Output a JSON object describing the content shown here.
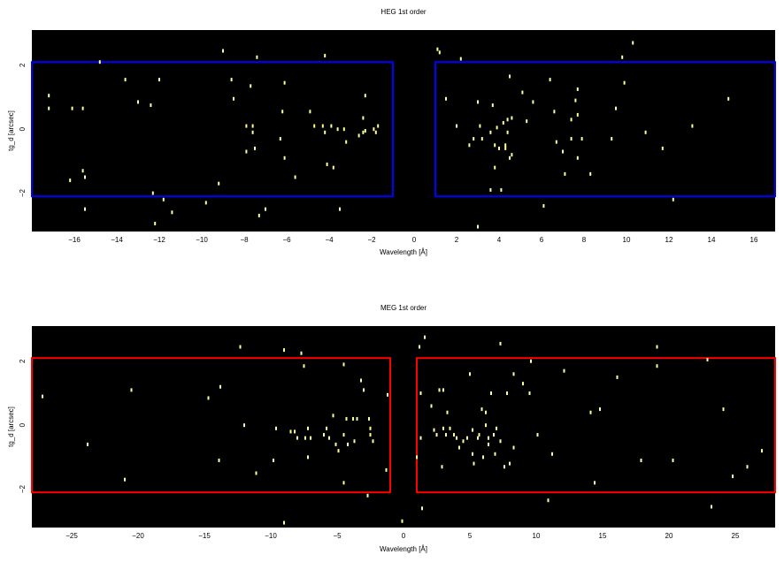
{
  "chart_data": [
    {
      "type": "scatter",
      "title": "HEG 1st order",
      "xlabel": "Wavelength [Å]",
      "ylabel": "tg_d [arcsec]",
      "xlim": [
        -18,
        17
      ],
      "ylim": [
        -3.2,
        3.1
      ],
      "xticks": [
        "−16",
        "−14",
        "−12",
        "−10",
        "−8",
        "−6",
        "−4",
        "−2",
        "0",
        "2",
        "4",
        "6",
        "8",
        "10",
        "12",
        "14",
        "16"
      ],
      "xtick_values": [
        -16,
        -14,
        -12,
        -10,
        -8,
        -6,
        -4,
        -2,
        0,
        2,
        4,
        6,
        8,
        10,
        12,
        14,
        16
      ],
      "yticks": [
        "−2",
        "0",
        "2"
      ],
      "ytick_values": [
        -2,
        0,
        2
      ],
      "background": "#000000",
      "point_color": "#ffff99",
      "box_color": "#0000ff",
      "regions": [
        {
          "x": [
            -18.2,
            -1.0
          ],
          "y": [
            -2.1,
            2.1
          ]
        },
        {
          "x": [
            1.0,
            17.2
          ],
          "y": [
            -2.1,
            2.1
          ]
        }
      ],
      "points": [
        [
          -17.2,
          1.05
        ],
        [
          -17.2,
          0.65
        ],
        [
          -16.2,
          -1.6
        ],
        [
          -16.1,
          0.65
        ],
        [
          -15.6,
          0.65
        ],
        [
          -15.6,
          -1.3
        ],
        [
          -15.5,
          -1.5
        ],
        [
          -15.5,
          -2.5
        ],
        [
          -14.8,
          2.1
        ],
        [
          -13.6,
          1.55
        ],
        [
          -13.0,
          0.85
        ],
        [
          -12.4,
          0.75
        ],
        [
          -12.3,
          -2.0
        ],
        [
          -12.2,
          -2.95
        ],
        [
          -12.0,
          1.55
        ],
        [
          -11.8,
          -2.2
        ],
        [
          -11.4,
          -2.6
        ],
        [
          -9.8,
          -2.3
        ],
        [
          -9.2,
          -1.7
        ],
        [
          -9.0,
          2.45
        ],
        [
          -8.6,
          1.55
        ],
        [
          -8.5,
          0.95
        ],
        [
          -7.9,
          0.1
        ],
        [
          -7.9,
          -0.7
        ],
        [
          -7.7,
          1.35
        ],
        [
          -7.6,
          0.1
        ],
        [
          -7.6,
          -0.1
        ],
        [
          -7.5,
          -0.6
        ],
        [
          -7.4,
          2.25
        ],
        [
          -7.3,
          -2.7
        ],
        [
          -7.0,
          -2.5
        ],
        [
          -6.3,
          -0.3
        ],
        [
          -6.2,
          0.55
        ],
        [
          -6.1,
          -0.9
        ],
        [
          -6.1,
          1.45
        ],
        [
          -5.6,
          -1.5
        ],
        [
          -4.9,
          0.55
        ],
        [
          -4.7,
          0.1
        ],
        [
          -4.3,
          0.1
        ],
        [
          -4.2,
          2.3
        ],
        [
          -4.2,
          -0.1
        ],
        [
          -4.1,
          -1.1
        ],
        [
          -3.9,
          0.1
        ],
        [
          -3.8,
          -1.2
        ],
        [
          -3.6,
          0.0
        ],
        [
          -3.5,
          -2.5
        ],
        [
          -3.3,
          0.0
        ],
        [
          -3.2,
          -0.4
        ],
        [
          -2.6,
          -0.2
        ],
        [
          -2.4,
          0.35
        ],
        [
          -2.4,
          -0.1
        ],
        [
          -2.3,
          -0.05
        ],
        [
          -2.3,
          1.05
        ],
        [
          -1.9,
          0.0
        ],
        [
          -1.8,
          -0.1
        ],
        [
          -1.7,
          0.1
        ],
        [
          1.1,
          2.5
        ],
        [
          1.2,
          2.4
        ],
        [
          1.5,
          0.95
        ],
        [
          2.0,
          0.1
        ],
        [
          2.2,
          2.2
        ],
        [
          2.6,
          -0.5
        ],
        [
          2.8,
          -0.3
        ],
        [
          3.0,
          -3.05
        ],
        [
          3.0,
          0.85
        ],
        [
          3.1,
          0.1
        ],
        [
          3.2,
          -0.3
        ],
        [
          3.6,
          -0.1
        ],
        [
          3.6,
          -1.9
        ],
        [
          3.7,
          0.75
        ],
        [
          3.8,
          -1.2
        ],
        [
          3.8,
          -0.5
        ],
        [
          3.9,
          0.05
        ],
        [
          4.0,
          -0.6
        ],
        [
          4.1,
          -1.9
        ],
        [
          4.2,
          0.2
        ],
        [
          4.3,
          -0.6
        ],
        [
          4.3,
          -0.5
        ],
        [
          4.4,
          0.3
        ],
        [
          4.4,
          -0.1
        ],
        [
          4.5,
          1.65
        ],
        [
          4.5,
          -0.9
        ],
        [
          4.6,
          0.35
        ],
        [
          4.6,
          -0.8
        ],
        [
          5.1,
          1.15
        ],
        [
          5.3,
          0.25
        ],
        [
          5.6,
          0.85
        ],
        [
          6.1,
          -2.4
        ],
        [
          6.4,
          1.55
        ],
        [
          6.6,
          0.55
        ],
        [
          6.7,
          -0.4
        ],
        [
          7.0,
          -0.7
        ],
        [
          7.1,
          -1.4
        ],
        [
          7.4,
          0.3
        ],
        [
          7.4,
          -0.3
        ],
        [
          7.6,
          0.9
        ],
        [
          7.7,
          1.25
        ],
        [
          7.7,
          0.45
        ],
        [
          7.7,
          -0.9
        ],
        [
          7.9,
          -0.3
        ],
        [
          8.3,
          -1.4
        ],
        [
          9.3,
          -0.3
        ],
        [
          9.5,
          0.65
        ],
        [
          9.8,
          2.25
        ],
        [
          9.9,
          1.45
        ],
        [
          10.3,
          2.7
        ],
        [
          10.9,
          -0.1
        ],
        [
          11.7,
          -0.6
        ],
        [
          12.2,
          -2.2
        ],
        [
          13.1,
          0.1
        ],
        [
          14.8,
          0.95
        ]
      ]
    },
    {
      "type": "scatter",
      "title": "MEG 1st order",
      "xlabel": "Wavelength [Å]",
      "ylabel": "tg_d [arcsec]",
      "xlim": [
        -28,
        28
      ],
      "ylim": [
        -3.2,
        3.1
      ],
      "xticks": [
        "−25",
        "−20",
        "−15",
        "−10",
        "−5",
        "0",
        "5",
        "10",
        "15",
        "20",
        "25"
      ],
      "xtick_values": [
        -25,
        -20,
        -15,
        -10,
        -5,
        0,
        5,
        10,
        15,
        20,
        25
      ],
      "yticks": [
        "−2",
        "0",
        "2"
      ],
      "ytick_values": [
        -2,
        0,
        2
      ],
      "background": "#000000",
      "point_color": "#ffff99",
      "box_color": "#ff0000",
      "regions": [
        {
          "x": [
            -28.3,
            -1.0
          ],
          "y": [
            -2.1,
            2.1
          ]
        },
        {
          "x": [
            1.0,
            28.3
          ],
          "y": [
            -2.1,
            2.1
          ]
        }
      ],
      "points": [
        [
          -27.2,
          0.9
        ],
        [
          -23.8,
          -0.6
        ],
        [
          -21.0,
          -1.7
        ],
        [
          -20.5,
          1.1
        ],
        [
          -14.7,
          0.85
        ],
        [
          -13.9,
          -1.1
        ],
        [
          -13.8,
          1.2
        ],
        [
          -12.3,
          2.45
        ],
        [
          -12.0,
          -0.0
        ],
        [
          -11.1,
          -1.5
        ],
        [
          -9.8,
          -1.1
        ],
        [
          -9.6,
          -0.1
        ],
        [
          -9.0,
          2.35
        ],
        [
          -8.5,
          -0.2
        ],
        [
          -8.2,
          -0.2
        ],
        [
          -8.0,
          -0.4
        ],
        [
          -7.7,
          2.25
        ],
        [
          -7.5,
          1.85
        ],
        [
          -7.4,
          -0.4
        ],
        [
          -7.2,
          -1.0
        ],
        [
          -7.2,
          -0.1
        ],
        [
          -7.0,
          -0.4
        ],
        [
          -6.0,
          -0.3
        ],
        [
          -5.8,
          -0.1
        ],
        [
          -5.6,
          -0.4
        ],
        [
          -5.3,
          0.3
        ],
        [
          -5.1,
          -0.6
        ],
        [
          -4.9,
          -0.8
        ],
        [
          -4.5,
          1.9
        ],
        [
          -4.5,
          -1.8
        ],
        [
          -4.5,
          -0.3
        ],
        [
          -4.3,
          0.2
        ],
        [
          -4.2,
          -0.6
        ],
        [
          -3.8,
          0.2
        ],
        [
          -3.7,
          -0.5
        ],
        [
          -3.5,
          0.2
        ],
        [
          -3.2,
          1.4
        ],
        [
          -3.0,
          1.1
        ],
        [
          -2.7,
          -2.2
        ],
        [
          -2.6,
          0.2
        ],
        [
          -2.5,
          -0.1
        ],
        [
          -2.5,
          -0.3
        ],
        [
          -2.3,
          -0.5
        ],
        [
          -1.3,
          -1.4
        ],
        [
          -1.2,
          0.95
        ],
        [
          -9.0,
          -3.05
        ],
        [
          1.0,
          -1.0
        ],
        [
          1.2,
          2.45
        ],
        [
          1.3,
          -0.4
        ],
        [
          1.3,
          1.0
        ],
        [
          1.6,
          2.75
        ],
        [
          2.1,
          0.6
        ],
        [
          2.3,
          -0.15
        ],
        [
          2.5,
          -0.3
        ],
        [
          2.7,
          1.1
        ],
        [
          3.0,
          -0.1
        ],
        [
          3.2,
          -0.3
        ],
        [
          3.3,
          0.4
        ],
        [
          3.5,
          -0.1
        ],
        [
          3.8,
          -0.3
        ],
        [
          4.0,
          -0.4
        ],
        [
          4.2,
          -0.7
        ],
        [
          4.5,
          -0.5
        ],
        [
          4.8,
          -0.4
        ],
        [
          5.0,
          1.6
        ],
        [
          5.2,
          -0.15
        ],
        [
          5.2,
          -0.9
        ],
        [
          5.6,
          -0.4
        ],
        [
          5.7,
          -0.3
        ],
        [
          5.9,
          0.5
        ],
        [
          6.0,
          -1.0
        ],
        [
          6.2,
          0.0
        ],
        [
          6.2,
          0.4
        ],
        [
          6.4,
          -0.4
        ],
        [
          6.4,
          -0.6
        ],
        [
          6.6,
          1.0
        ],
        [
          6.8,
          -0.3
        ],
        [
          6.9,
          -0.9
        ],
        [
          7.0,
          -0.1
        ],
        [
          7.3,
          2.55
        ],
        [
          7.3,
          -0.5
        ],
        [
          7.6,
          -1.3
        ],
        [
          7.8,
          1.0
        ],
        [
          8.0,
          -1.2
        ],
        [
          8.3,
          1.6
        ],
        [
          8.3,
          -0.7
        ],
        [
          9.0,
          1.3
        ],
        [
          9.5,
          1.0
        ],
        [
          9.6,
          2.0
        ],
        [
          10.1,
          -0.3
        ],
        [
          10.9,
          -2.35
        ],
        [
          11.2,
          -0.9
        ],
        [
          12.1,
          1.7
        ],
        [
          14.1,
          0.4
        ],
        [
          14.4,
          -1.8
        ],
        [
          14.8,
          0.5
        ],
        [
          16.1,
          1.5
        ],
        [
          17.9,
          -1.1
        ],
        [
          19.1,
          2.45
        ],
        [
          19.1,
          1.85
        ],
        [
          20.3,
          -1.1
        ],
        [
          22.9,
          2.05
        ],
        [
          23.2,
          -2.55
        ],
        [
          24.1,
          0.5
        ],
        [
          24.8,
          -1.6
        ],
        [
          25.9,
          -1.3
        ],
        [
          27.0,
          -0.8
        ],
        [
          5.3,
          -1.2
        ],
        [
          2.9,
          -1.3
        ],
        [
          -0.1,
          -3.0
        ],
        [
          1.4,
          -2.6
        ],
        [
          3.0,
          1.1
        ]
      ]
    }
  ]
}
